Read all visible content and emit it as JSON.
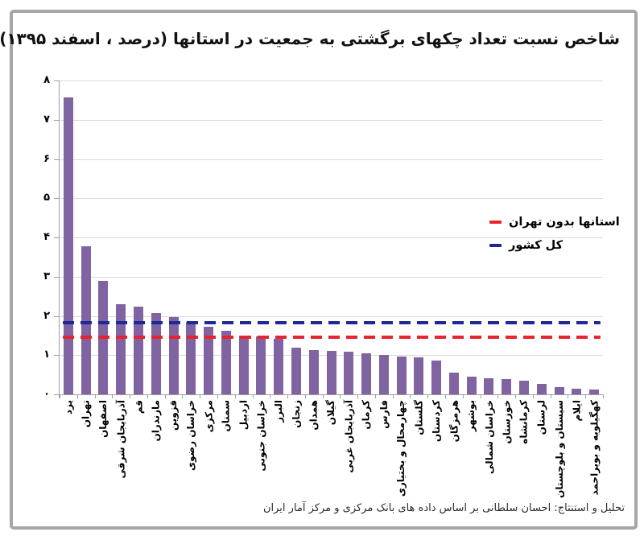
{
  "title": "شاخص نسبت تعداد چکهای برگشتی به جمعیت در استانها (درصد ، اسفند ۱۳۹۵)",
  "source_caption": "تحلیل و استنتاج: احسان سلطانی بر اساس داده های بانک مرکزی و مرکز آمار ایران",
  "chart_data": {
    "type": "bar",
    "title": "شاخص نسبت تعداد چکهای برگشتی به جمعیت در استانها (درصد ، اسفند ۱۳۹۵)",
    "categories": [
      "یزد",
      "تهران",
      "اصفهان",
      "آذربایجان شرقی",
      "قم",
      "مازندران",
      "قزوین",
      "خراسان رضوی",
      "مرکزی",
      "سمنان",
      "اردبیل",
      "خراسان جنوبی",
      "البرز",
      "زنجان",
      "همدان",
      "گیلان",
      "آذربایجان غربی",
      "کرمان",
      "فارس",
      "چهارمحال و بختیاری",
      "گلستان",
      "کردستان",
      "هرمزگان",
      "بوشهر",
      "خراسان شمالی",
      "خوزستان",
      "کرمانشاه",
      "لرستان",
      "سیستان و بلوچستان",
      "ایلام",
      "کهگیلویه و بویراحمد"
    ],
    "values": [
      7.57,
      3.77,
      2.9,
      2.3,
      2.24,
      2.07,
      1.96,
      1.85,
      1.72,
      1.62,
      1.5,
      1.47,
      1.42,
      1.18,
      1.13,
      1.11,
      1.08,
      1.05,
      1.01,
      0.97,
      0.94,
      0.86,
      0.55,
      0.46,
      0.41,
      0.4,
      0.35,
      0.27,
      0.19,
      0.14,
      0.12
    ],
    "bar_color": "#8064A2",
    "ylim": [
      0,
      8
    ],
    "ytick_labels": [
      "۰",
      "۱",
      "۲",
      "۳",
      "۴",
      "۵",
      "۶",
      "۷",
      "۸"
    ],
    "grid": true,
    "gridline_color": "#d9d9d9",
    "axis_color": "#9e9e9e",
    "legend_position": "inside-right",
    "xlabel": "",
    "ylabel": "",
    "reference_lines": [
      {
        "label": "استانها بدون تهران",
        "value": 1.45,
        "color": "#E8232E",
        "style": "dashed"
      },
      {
        "label": "کل کشور",
        "value": 1.82,
        "color": "#1E2896",
        "style": "dashed"
      }
    ]
  }
}
